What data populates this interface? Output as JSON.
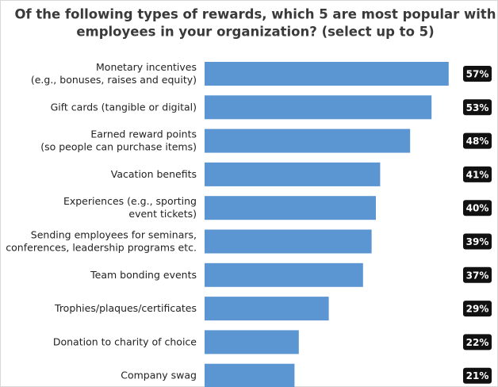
{
  "chart_data": {
    "type": "barh",
    "title": [
      "Of the following types of rewards, which 5 are most popular with",
      "employees in your organization? (select up to 5)"
    ],
    "categories": [
      [
        "Monetary incentives",
        "(e.g., bonuses, raises and equity)"
      ],
      [
        "Gift cards (tangible or digital)"
      ],
      [
        "Earned reward points",
        "(so people can purchase items)"
      ],
      [
        "Vacation benefits"
      ],
      [
        "Experiences (e.g., sporting",
        "event tickets)"
      ],
      [
        "Sending employees for seminars,",
        "conferences, leadership programs etc."
      ],
      [
        "Team bonding events"
      ],
      [
        "Trophies/plaques/certificates"
      ],
      [
        "Donation to charity of choice"
      ],
      [
        "Company swag"
      ]
    ],
    "values": [
      57,
      53,
      48,
      41,
      40,
      39,
      37,
      29,
      22,
      21
    ],
    "value_labels": [
      "57%",
      "53%",
      "48%",
      "41%",
      "40%",
      "39%",
      "37%",
      "29%",
      "22%",
      "21%"
    ],
    "color": "#5b96d2"
  }
}
